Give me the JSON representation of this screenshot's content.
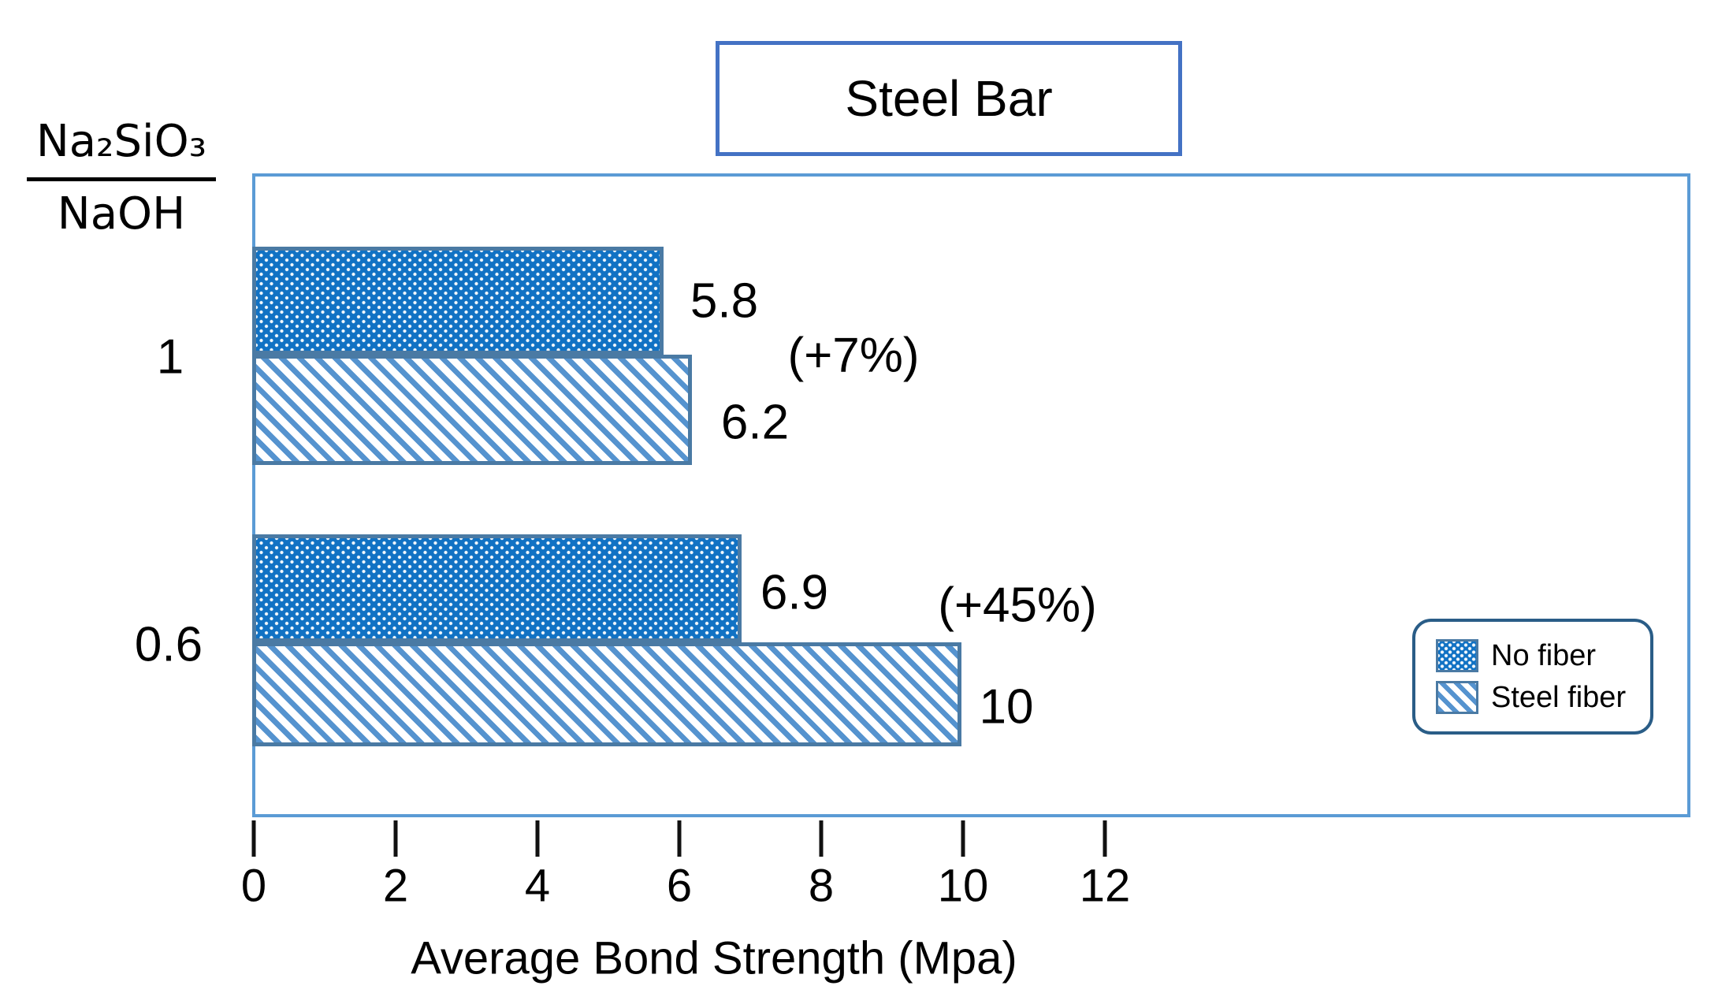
{
  "chart_data": {
    "type": "bar",
    "orientation": "horizontal",
    "title": "Steel Bar",
    "xlabel": "Average Bond Strength (Mpa)",
    "ylabel": "Na₂SiO₃ / NaOH",
    "categories": [
      "1",
      "0.6"
    ],
    "series": [
      {
        "name": "No fiber",
        "pattern": "white-dots-on-blue",
        "values": [
          5.8,
          6.9
        ]
      },
      {
        "name": "Steel fiber",
        "pattern": "blue-diagonal-stripes",
        "values": [
          6.2,
          10
        ]
      }
    ],
    "annotations": [
      {
        "category": "1",
        "text": "(+7%)"
      },
      {
        "category": "0.6",
        "text": "(+45%)"
      }
    ],
    "x_ticks": [
      0,
      2,
      4,
      6,
      8,
      10,
      12
    ],
    "xlim": [
      0,
      20
    ],
    "grid": false,
    "legend_position": "right-inside"
  },
  "y_axis": {
    "numerator": "Na₂SiO₃",
    "denominator": "NaOH"
  },
  "colors": {
    "bar_fill_blue": "#1172C4",
    "hatch_stripe_blue": "#5593CF",
    "bar_border": "#4A7AA4",
    "plot_border": "#5B9BD5",
    "title_border": "#4472C4",
    "legend_border": "#2A5D87",
    "text": "#000000"
  }
}
